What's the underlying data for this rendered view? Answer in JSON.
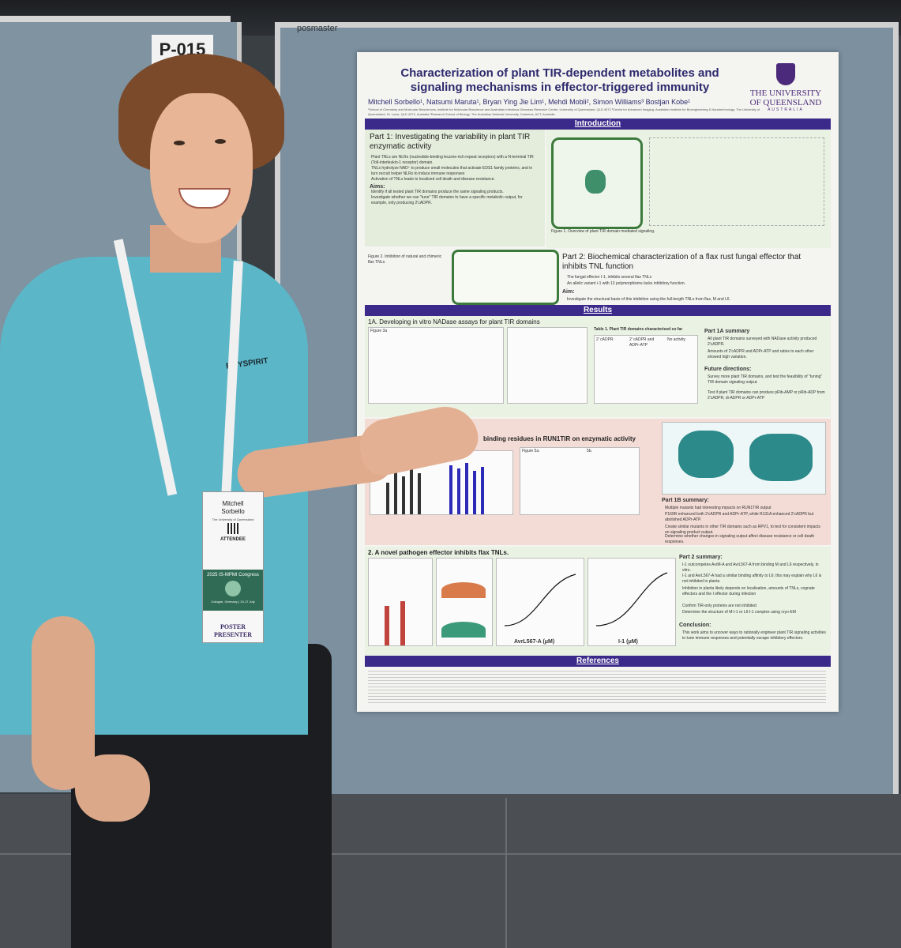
{
  "scene": {
    "board_label": "P-015",
    "board_brand": "posmaster",
    "colors": {
      "board": "#7c90a0",
      "shirt": "#5bb6c8",
      "poster_bar": "#3b2a8a",
      "title": "#2e2a6e"
    }
  },
  "poster": {
    "title": "Characterization of plant TIR-dependent metabolites and signaling mechanisms in effector-triggered immunity",
    "authors": "Mitchell Sorbello¹, Natsumi Maruta¹, Bryan Ying Jie Lim¹, Mehdi Mobli², Simon Williams³ Bostjan Kobe¹",
    "affiliations": "¹School of Chemistry and Molecular Biosciences, Institute for Molecular Bioscience and Australian Infectious Diseases Research Centre, University of Queensland, QLD 4072 ²Centre for Advanced Imaging, Australian Institute for Bioengineering & Nanotechnology, The University of Queensland, St. Lucia, QLD 4072, Australia ³Research School of Biology, The Australian National University, Canberra, ACT, Australia",
    "logo": {
      "line1": "THE UNIVERSITY",
      "line2": "OF QUEENSLAND",
      "line3": "AUSTRALIA"
    },
    "sections": {
      "introduction": "Introduction",
      "results": "Results",
      "references": "References"
    },
    "part1": {
      "title": "Part 1: Investigating the variability in plant TIR enzymatic activity",
      "bullets": [
        "Plant TNLs are NLRs (nucleotide-binding leucine-rich-repeat receptors) with a N-terminal TIR (Toll-interleukin-1 receptor) domain.",
        "TNLs hydrolyze NAD⁺ to produce small molecules that activate EDS1 family proteins, and in turn recruit helper NLRs to induce immune responses",
        "Activation of TNLs leads to localized cell death and disease resistance."
      ],
      "aims_title": "Aims:",
      "aims": [
        "Identify if all tested plant TIR domains produce the same signaling products.",
        "Investigate whether we can \"tune\" TIR domains to have a specific metabolic output, for example, only producing 2'cADPR."
      ],
      "figure1_caption": "Figure 1. Overview of plant TIR domain mediated signaling."
    },
    "part2": {
      "title": "Part 2: Biochemical characterization of a flax rust fungal effector that inhibits TNL function",
      "bullets": [
        "The fungal effector I-1, inhibits several flax TNLs",
        "An allelic variant i-1 with 13 polymorphisms lacks inhibitory function."
      ],
      "aim_title": "Aim:",
      "aim": "Investigate the structural basis of this inhibition using the full-length TNLs from flax, M and L6.",
      "figure2_caption": "Figure 2. Inhibition of natural and chimeric flax TNLs."
    },
    "results": {
      "r1a_title": "1A. Developing in vitro NADase assays for plant TIR domains",
      "fig3a": "Figure 3a",
      "table1_title": "Table 1. Plant TIR domains characterised so far",
      "table_headers": [
        "2' cADPR",
        "2' cADPR and ADPr-ATP",
        "No activity"
      ],
      "summary1a_title": "Part 1A summary",
      "summary1a": [
        "All plant TIR domains surveyed with NADase activity produced 2'cADPR.",
        "Amounts of 2'cADPR and ADPr-ATP and ratios to each other showed high variation."
      ],
      "future1a_title": "Future directions:",
      "future1a": [
        "Survey more plant TIR domains, and test the feasibility of \"tuning\" TIR domain signaling output.",
        "Test if plant TIR domains can produce pRib-AMP or pRib-ADP from 2'cADPR, di-ADPR or ADPr-ATP"
      ],
      "r1b_title": "binding residues in RUN1TIR on enzymatic activity",
      "fig5a": "Figure 5a.",
      "fig5b": "5b.",
      "summary1b_title": "Part 1B summary:",
      "summary1b": [
        "Multiple mutants had interesting impacts on RUN1TIR output",
        "P169R enhanced both 2'cADPR and ADPr-ATP, while R131A enhanced 2'cADPR but abolished ADPr-ATP."
      ],
      "future1b": [
        "Create similar mutants in other TIR domains such as RPV1, to test for consistent impacts on signaling product output.",
        "Determine whether changes in signaling output affect disease resistance or cell death responses."
      ],
      "r2_title": "2. A novel pathogen effector inhibits flax TNLs.",
      "xaxis_7e": "AvrL567-A (μM)",
      "xaxis_7f": "I-1 (μM)",
      "yaxis": "ΔFnorm",
      "summary2_title": "Part 2 summary:",
      "summary2": [
        "I-1 outcompetes AvrM-A and AvrL567-A from binding M and L6 respectively, in vitro.",
        "I-1 and AvrL567-A had a similar binding affinity to L6; this may explain why L6 is not inhibited in planta",
        "Inhibition in planta likely depends on localisation, amounts of TNLs, cognate effectors and the I effector during infection"
      ],
      "future2": [
        "Confirm TIR-only proteins are not inhibited",
        "Determine the structure of M:I-1 or L6:I-1 complex using cryo-EM"
      ],
      "conclusion_title": "Conclusion:",
      "conclusion": "This work aims to uncover ways to rationally engineer plant TIR signaling activities to tune immune responses and potentially escape inhibitory effectors."
    }
  },
  "badge": {
    "first_name": "Mitchell",
    "last_name": "Sorbello",
    "institution": "The University of Queensland",
    "type": "ATTENDEE",
    "congress": "2025 IS-MPMI Congress",
    "location": "Cologne, Germany | 13-17 July",
    "role": "POSTER PRESENTER"
  },
  "shirt_text": "BOYSPIRIT"
}
